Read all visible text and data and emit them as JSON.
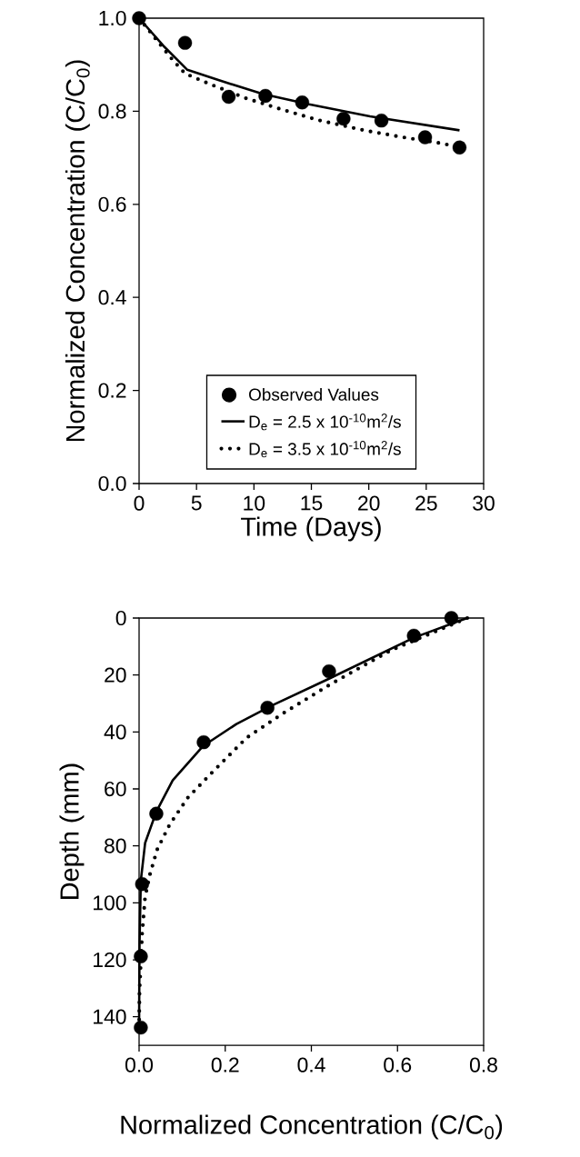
{
  "chart_data": [
    {
      "type": "scatter",
      "xlabel": "Time (Days)",
      "ylabel": "Normalized Concentration (C/C$_{0}$)",
      "xlim": [
        0,
        30
      ],
      "ylim": [
        0,
        1
      ],
      "xticks": [
        0,
        5,
        10,
        15,
        20,
        25,
        30
      ],
      "yticks": [
        {
          "value": 0,
          "label": "0.0"
        },
        {
          "value": 0.2,
          "label": "0.2"
        },
        {
          "value": 0.4,
          "label": "0.4"
        },
        {
          "value": 0.6,
          "label": "0.6"
        },
        {
          "value": 0.8,
          "label": "0.8"
        },
        {
          "value": 1,
          "label": "1.0"
        }
      ],
      "legend": "bottom",
      "grid": false,
      "series": [
        {
          "name": "Observed Values",
          "type": "scatter",
          "marker": "circle",
          "color": "#000000",
          "x": [
            0,
            4,
            7.8,
            11,
            14.2,
            17.8,
            21.1,
            24.9,
            27.9
          ],
          "values": [
            1.0,
            0.947,
            0.831,
            0.833,
            0.819,
            0.784,
            0.78,
            0.744,
            0.722
          ]
        },
        {
          "name": "D$_{e}$ = 2.5 x 10$^{-10}$m$^{2}$/s",
          "type": "line",
          "line_style": "solid",
          "color": "#000000",
          "x": [
            0,
            2.1,
            4.2,
            6.9,
            10.8,
            14.8,
            20.1,
            27.9
          ],
          "values": [
            1.0,
            0.941,
            0.889,
            0.867,
            0.837,
            0.815,
            0.789,
            0.759
          ]
        },
        {
          "name": "D$_{e}$ = 3.5 x 10$^{-10}$m$^{2}$/s",
          "type": "line",
          "line_style": "dotted",
          "color": "#000000",
          "x": [
            0,
            2.9,
            4,
            6.1,
            9.3,
            12.4,
            15.6,
            19.6,
            23,
            26.1,
            27.9
          ],
          "values": [
            1.0,
            0.911,
            0.881,
            0.859,
            0.828,
            0.804,
            0.781,
            0.759,
            0.744,
            0.732,
            0.723
          ]
        }
      ]
    },
    {
      "type": "scatter",
      "xlabel": "Normalized Concentration (C/C$_{0}$)",
      "ylabel": "Depth (mm)",
      "xlim": [
        0,
        0.8
      ],
      "ylim": [
        150,
        0
      ],
      "xticks": [
        {
          "value": 0,
          "label": "0.0"
        },
        {
          "value": 0.2,
          "label": "0.2"
        },
        {
          "value": 0.4,
          "label": "0.4"
        },
        {
          "value": 0.6,
          "label": "0.6"
        },
        {
          "value": 0.8,
          "label": "0.8"
        }
      ],
      "yticks": [
        0,
        20,
        40,
        60,
        80,
        100,
        120,
        140
      ],
      "grid": false,
      "series": [
        {
          "type": "scatter",
          "marker": "circle",
          "color": "#000000",
          "x": [
            0.725,
            0.638,
            0.441,
            0.298,
            0.15,
            0.04,
            0.007,
            0.004,
            0.004
          ],
          "values": [
            0,
            6.2,
            18.7,
            31.5,
            43.6,
            68.7,
            93.4,
            118.8,
            143.8
          ]
        },
        {
          "type": "line",
          "line_style": "solid",
          "color": "#000000",
          "x": [
            0.762,
            0.638,
            0.441,
            0.31,
            0.226,
            0.148,
            0.078,
            0.04,
            0.014,
            0.004,
            0.001,
            0
          ],
          "values": [
            0,
            6.9,
            21.3,
            30.6,
            37.2,
            45,
            57,
            68,
            79,
            92.3,
            114.4,
            144
          ]
        },
        {
          "type": "line",
          "line_style": "dotted",
          "color": "#000000",
          "x": [
            0.762,
            0.585,
            0.446,
            0.335,
            0.25,
            0.169,
            0.113,
            0.071,
            0.042,
            0.025,
            0.014,
            0.007,
            0.001,
            0
          ],
          "values": [
            0,
            11.3,
            23.1,
            33.4,
            42,
            54.3,
            63.1,
            72.5,
            81.3,
            90.1,
            97.9,
            111,
            130.9,
            144
          ]
        }
      ]
    }
  ]
}
